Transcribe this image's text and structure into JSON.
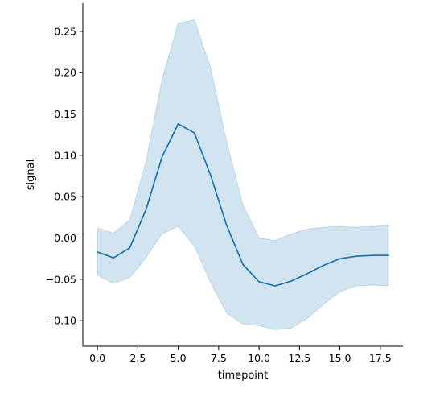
{
  "chart_data": {
    "type": "line",
    "title": "",
    "xlabel": "timepoint",
    "ylabel": "signal",
    "xlim": [
      -0.9,
      18.9
    ],
    "ylim": [
      -0.131,
      0.284
    ],
    "xticks": [
      0.0,
      2.5,
      5.0,
      7.5,
      10.0,
      12.5,
      15.0,
      17.5
    ],
    "xtick_labels": [
      "0.0",
      "2.5",
      "5.0",
      "7.5",
      "10.0",
      "12.5",
      "15.0",
      "17.5"
    ],
    "yticks": [
      -0.1,
      -0.05,
      0.0,
      0.05,
      0.1,
      0.15,
      0.2,
      0.25
    ],
    "ytick_labels": [
      "−0.10",
      "−0.05",
      "0.00",
      "0.05",
      "0.10",
      "0.15",
      "0.20",
      "0.25"
    ],
    "grid": false,
    "legend": "none",
    "colors": {
      "line": "#1f77b4",
      "band": "#1f77b4"
    },
    "series": [
      {
        "x": [
          0,
          1,
          2,
          3,
          4,
          5,
          6,
          7,
          8,
          9,
          10,
          11,
          12,
          13,
          14,
          15,
          16,
          17,
          18
        ],
        "values": [
          -0.017,
          -0.024,
          -0.012,
          0.034,
          0.098,
          0.138,
          0.127,
          0.076,
          0.015,
          -0.032,
          -0.053,
          -0.058,
          -0.052,
          -0.043,
          -0.033,
          -0.025,
          -0.022,
          -0.021,
          -0.021
        ],
        "ci_lower": [
          -0.045,
          -0.055,
          -0.048,
          -0.024,
          0.005,
          0.014,
          -0.01,
          -0.054,
          -0.091,
          -0.104,
          -0.106,
          -0.111,
          -0.109,
          -0.097,
          -0.08,
          -0.065,
          -0.058,
          -0.057,
          -0.058
        ],
        "ci_upper": [
          0.012,
          0.006,
          0.022,
          0.092,
          0.192,
          0.26,
          0.264,
          0.206,
          0.116,
          0.04,
          0.0,
          -0.003,
          0.005,
          0.011,
          0.013,
          0.014,
          0.013,
          0.014,
          0.015
        ]
      }
    ]
  }
}
